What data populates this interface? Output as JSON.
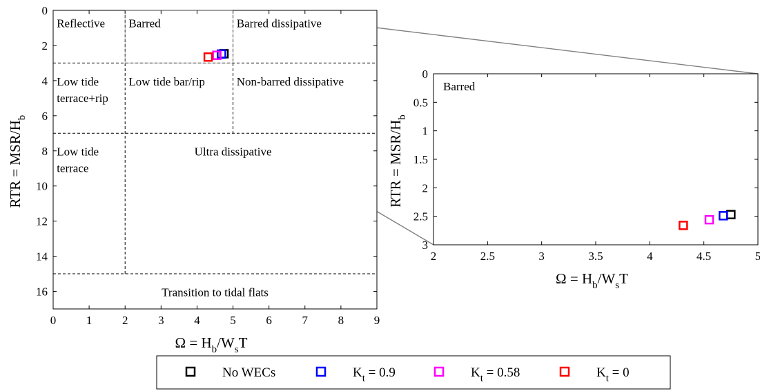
{
  "chart_data": [
    {
      "type": "scatter",
      "title": "",
      "xlabel": "Ω = H_b/W_s T",
      "ylabel": "RTR = MSR/H_b",
      "xlim": [
        0,
        9
      ],
      "ylim": [
        0,
        17
      ],
      "y_reversed": true,
      "xticks": [
        0,
        1,
        2,
        3,
        4,
        5,
        6,
        7,
        8,
        9
      ],
      "yticks": [
        0,
        2,
        4,
        6,
        8,
        10,
        12,
        14,
        16
      ],
      "grid": false,
      "regions": [
        {
          "label_lines": [
            "Reflective"
          ]
        },
        {
          "label_lines": [
            "Barred"
          ]
        },
        {
          "label_lines": [
            "Barred dissipative"
          ]
        },
        {
          "label_lines": [
            "Low tide",
            "terrace+rip"
          ]
        },
        {
          "label_lines": [
            "Low tide bar/rip"
          ]
        },
        {
          "label_lines": [
            "Non-barred dissipative"
          ]
        },
        {
          "label_lines": [
            "Low tide",
            "terrace"
          ]
        },
        {
          "label_lines": [
            "Ultra dissipative"
          ]
        },
        {
          "label_lines": [
            "Transition to tidal flats"
          ]
        }
      ],
      "boundaries": {
        "vertical": [
          {
            "x": 2,
            "y_from": 0,
            "y_to": 15
          },
          {
            "x": 5,
            "y_from": 0,
            "y_to": 7
          }
        ],
        "horizontal": [
          {
            "y": 3,
            "x_from": 0,
            "x_to": 9
          },
          {
            "y": 7,
            "x_from": 0,
            "x_to": 9
          },
          {
            "y": 15,
            "x_from": 0,
            "x_to": 9
          }
        ]
      },
      "series": [
        {
          "name": "No WECs",
          "color": "#000000",
          "x": [
            4.75
          ],
          "y": [
            2.47
          ]
        },
        {
          "name": "K_t = 0.9",
          "color": "#0000ff",
          "x": [
            4.68
          ],
          "y": [
            2.49
          ]
        },
        {
          "name": "K_t = 0.58",
          "color": "#ff00ff",
          "x": [
            4.55
          ],
          "y": [
            2.56
          ]
        },
        {
          "name": "K_t = 0",
          "color": "#ff0000",
          "x": [
            4.31
          ],
          "y": [
            2.66
          ]
        }
      ]
    },
    {
      "type": "scatter",
      "title": "",
      "xlabel": "Ω = H_b/W_s T",
      "ylabel": "RTR = MSR/H_b",
      "xlim": [
        2,
        5
      ],
      "ylim": [
        0,
        3
      ],
      "y_reversed": true,
      "xticks": [
        2,
        2.5,
        3,
        3.5,
        4,
        4.5,
        5
      ],
      "yticks": [
        0,
        0.5,
        1,
        1.5,
        2,
        2.5,
        3
      ],
      "grid": false,
      "regions": [
        {
          "label_lines": [
            "Barred"
          ]
        }
      ],
      "series": [
        {
          "name": "No WECs",
          "color": "#000000",
          "x": [
            4.75
          ],
          "y": [
            2.47
          ]
        },
        {
          "name": "K_t = 0.9",
          "color": "#0000ff",
          "x": [
            4.68
          ],
          "y": [
            2.49
          ]
        },
        {
          "name": "K_t = 0.58",
          "color": "#ff00ff",
          "x": [
            4.55
          ],
          "y": [
            2.56
          ]
        },
        {
          "name": "K_t = 0",
          "color": "#ff0000",
          "x": [
            4.31
          ],
          "y": [
            2.66
          ]
        }
      ]
    }
  ],
  "axis_text": {
    "x": {
      "main": "Ω = H",
      "sub1": "b",
      "mid": "/W",
      "sub2": "s",
      "end": "T"
    },
    "y": {
      "main": "RTR = MSR/H",
      "sub": "b"
    }
  },
  "legend": {
    "position": "bottom",
    "items": [
      {
        "color": "#000000",
        "label_main": "No WECs",
        "label_sub": "",
        "label_tail": ""
      },
      {
        "color": "#0000ff",
        "label_main": "K",
        "label_sub": "t",
        "label_tail": " = 0.9"
      },
      {
        "color": "#ff00ff",
        "label_main": "K",
        "label_sub": "t",
        "label_tail": " = 0.58"
      },
      {
        "color": "#ff0000",
        "label_main": "K",
        "label_sub": "t",
        "label_tail": " = 0"
      }
    ]
  },
  "zoom_connector_color": "#808080"
}
